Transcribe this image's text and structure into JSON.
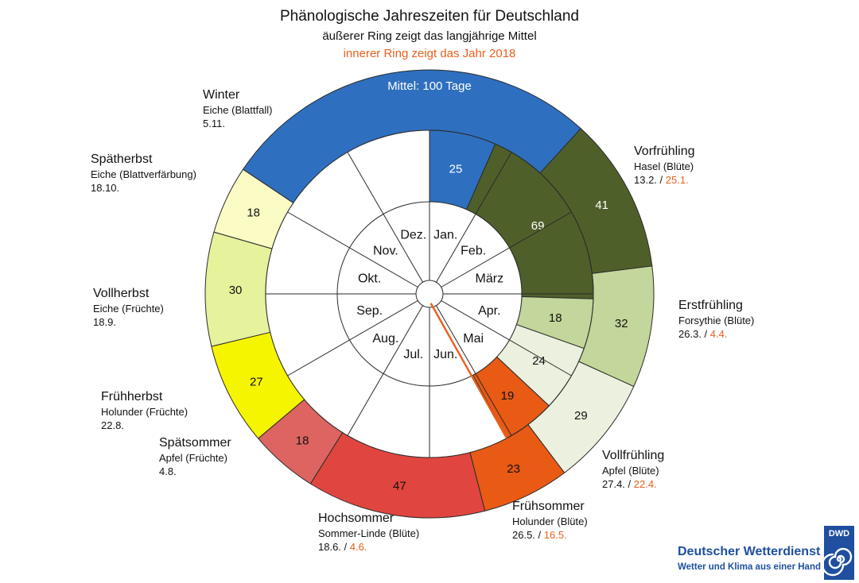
{
  "header": {
    "title": "Phänologische Jahreszeiten für Deutschland",
    "subtitle1": "äußerer Ring zeigt das langjährige Mittel",
    "subtitle2": "innerer Ring zeigt das Jahr 2018"
  },
  "colors": {
    "year_highlight": "#e8601c",
    "winter": "#2f6fbf",
    "vorfruehling": "#4f5f2a",
    "erstfruehling": "#c3d69b",
    "vollfruehling": "#ebf1de",
    "fruehsommer": "#e95a14",
    "hochsommer": "#e0463f",
    "spaetsommer": "#dd6460",
    "fruehherbst": "#f5f500",
    "vollherbst": "#e6f29c",
    "spaetherbst": "#fafbc5"
  },
  "chart_data": {
    "type": "pie",
    "unit": "Tage",
    "reference_year": 2018,
    "months": [
      "Jan.",
      "Feb.",
      "März",
      "Apr.",
      "Mai",
      "Jun.",
      "Jul.",
      "Aug.",
      "Sep.",
      "Okt.",
      "Nov.",
      "Dez."
    ],
    "series": [
      {
        "name": "Mittel",
        "values": [
          41,
          32,
          29,
          23,
          47,
          18,
          27,
          30,
          18,
          100
        ]
      },
      {
        "name": "2018",
        "values": [
          25,
          69,
          18,
          24,
          19
        ]
      }
    ],
    "seasons": [
      {
        "key": "vorfruehling",
        "name": "Vorfrühling",
        "indicator": "Hasel (Blüte)",
        "date_mean": "13.2.",
        "date_year": "25.1.",
        "days_mean": 41,
        "days_year": 69
      },
      {
        "key": "erstfruehling",
        "name": "Erstfrühling",
        "indicator": "Forsythie (Blüte)",
        "date_mean": "26.3.",
        "date_year": "4.4.",
        "days_mean": 32,
        "days_year": 18
      },
      {
        "key": "vollfruehling",
        "name": "Vollfrühling",
        "indicator": "Apfel (Blüte)",
        "date_mean": "27.4.",
        "date_year": "22.4.",
        "days_mean": 29,
        "days_year": 24
      },
      {
        "key": "fruehsommer",
        "name": "Frühsommer",
        "indicator": "Holunder (Blüte)",
        "date_mean": "26.5.",
        "date_year": "16.5.",
        "days_mean": 23,
        "days_year": 19
      },
      {
        "key": "hochsommer",
        "name": "Hochsommer",
        "indicator": "Sommer-Linde (Blüte)",
        "date_mean": "18.6.",
        "date_year": "4.6.",
        "days_mean": 47,
        "days_year": null
      },
      {
        "key": "spaetsommer",
        "name": "Spätsommer",
        "indicator": "Apfel (Früchte)",
        "date_mean": "4.8.",
        "date_year": null,
        "days_mean": 18,
        "days_year": null
      },
      {
        "key": "fruehherbst",
        "name": "Frühherbst",
        "indicator": "Holunder (Früchte)",
        "date_mean": "22.8.",
        "date_year": null,
        "days_mean": 27,
        "days_year": null
      },
      {
        "key": "vollherbst",
        "name": "Vollherbst",
        "indicator": "Eiche (Früchte)",
        "date_mean": "18.9.",
        "date_year": null,
        "days_mean": 30,
        "days_year": null
      },
      {
        "key": "spaetherbst",
        "name": "Spätherbst",
        "indicator": "Eiche (Blattverfärbung)",
        "date_mean": "18.10.",
        "date_year": null,
        "days_mean": 18,
        "days_year": null
      },
      {
        "key": "winter",
        "name": "Winter",
        "indicator": "Eiche (Blattfall)",
        "date_mean": "5.11.",
        "date_year": null,
        "days_mean": 100,
        "days_year": 25
      }
    ],
    "winter_mean_label": "Mittel: 100 Tage",
    "year_marker_date": "4.6."
  },
  "logo": {
    "abbr": "DWD",
    "name": "Deutscher Wetterdienst",
    "tagline": "Wetter und Klima aus einer Hand"
  }
}
